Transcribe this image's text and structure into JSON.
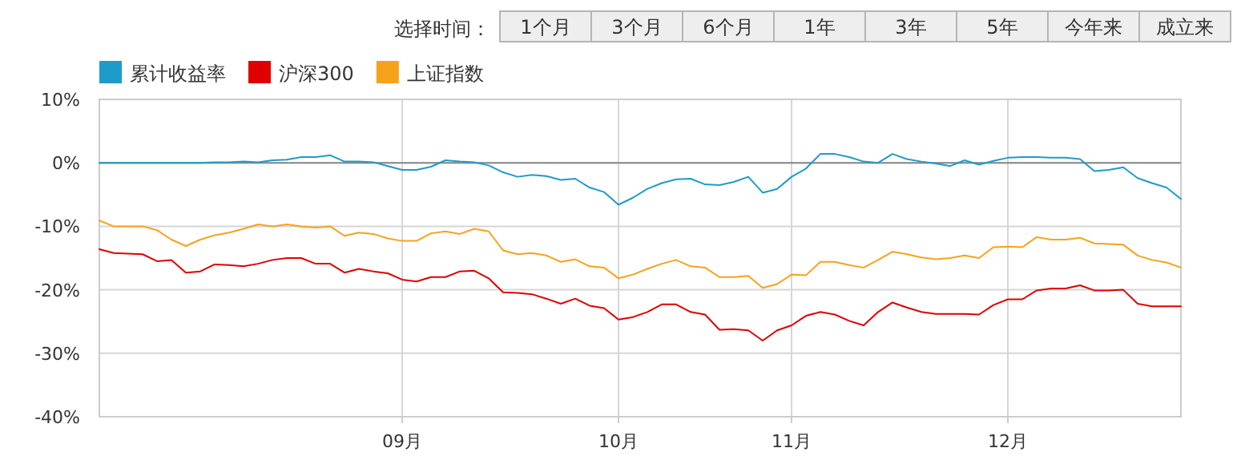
{
  "chart_data": {
    "type": "line",
    "annotations": [
      "选择时间：",
      "1个月",
      "3个月",
      "6个月",
      "1年",
      "3年",
      "5年",
      "今年来",
      "成立来"
    ],
    "categories": [
      null,
      null,
      null,
      null,
      null,
      null,
      null,
      null,
      null,
      null,
      null,
      null,
      null,
      null,
      null,
      null,
      null,
      null,
      null,
      null,
      null,
      "09月",
      null,
      null,
      null,
      null,
      null,
      null,
      null,
      null,
      null,
      null,
      null,
      null,
      null,
      null,
      "10月",
      null,
      null,
      null,
      null,
      null,
      null,
      null,
      null,
      null,
      null,
      null,
      "11月",
      null,
      null,
      null,
      null,
      null,
      null,
      null,
      null,
      null,
      null,
      null,
      null,
      null,
      null,
      "12月",
      null,
      null,
      null,
      null,
      null,
      null,
      null,
      null,
      null,
      null,
      null,
      null
    ],
    "series": [
      {
        "name": "累计收益率",
        "color": "#1e9bc9",
        "values": [
          0,
          0,
          0,
          0,
          0,
          0,
          0,
          0,
          0.1,
          0.1,
          0.2,
          0.1,
          0.4,
          0.5,
          0.9,
          0.9,
          1.2,
          0.2,
          0.2,
          0.1,
          -0.5,
          -1.1,
          -1.1,
          -0.6,
          0.4,
          0.2,
          0.1,
          -0.4,
          -1.5,
          -2.2,
          -1.9,
          -2.1,
          -2.7,
          -2.5,
          -3.9,
          -4.6,
          -6.6,
          -5.5,
          -4.1,
          -3.2,
          -2.6,
          -2.5,
          -3.4,
          -3.5,
          -3.0,
          -2.2,
          -4.7,
          -4.1,
          -2.2,
          -0.9,
          1.4,
          1.4,
          0.9,
          0.2,
          0,
          1.4,
          0.6,
          0.2,
          -0.1,
          -0.5,
          0.4,
          -0.3,
          0.3,
          0.8,
          0.9,
          0.9,
          0.8,
          0.8,
          0.6,
          -1.3,
          -1.1,
          -0.7,
          -2.4,
          -3.2,
          -3.9,
          -5.7
        ]
      },
      {
        "name": "沪深300",
        "color": "#e00000",
        "values": [
          -13.6,
          -14.2,
          -14.3,
          -14.4,
          -15.5,
          -15.3,
          -17.3,
          -17.1,
          -16.0,
          -16.1,
          -16.3,
          -15.9,
          -15.3,
          -15.0,
          -15.0,
          -15.9,
          -15.9,
          -17.3,
          -16.7,
          -17.1,
          -17.4,
          -18.4,
          -18.7,
          -18.0,
          -18.0,
          -17.1,
          -17.0,
          -18.2,
          -20.4,
          -20.5,
          -20.7,
          -21.4,
          -22.2,
          -21.4,
          -22.5,
          -22.9,
          -24.7,
          -24.3,
          -23.5,
          -22.3,
          -22.3,
          -23.5,
          -23.9,
          -26.3,
          -26.2,
          -26.4,
          -28.0,
          -26.4,
          -25.6,
          -24.1,
          -23.5,
          -23.9,
          -24.9,
          -25.6,
          -23.5,
          -22.0,
          -22.8,
          -23.5,
          -23.8,
          -23.8,
          -23.8,
          -23.9,
          -22.4,
          -21.5,
          -21.5,
          -20.1,
          -19.8,
          -19.8,
          -19.3,
          -20.1,
          -20.1,
          -20.0,
          -22.2,
          -22.6,
          -22.6,
          -22.6
        ]
      },
      {
        "name": "上证指数",
        "color": "#f7a21b",
        "values": [
          -9.1,
          -10.0,
          -10.0,
          -10.0,
          -10.6,
          -12.1,
          -13.1,
          -12.1,
          -11.4,
          -11.0,
          -10.4,
          -9.7,
          -10.0,
          -9.7,
          -10.0,
          -10.2,
          -10.0,
          -11.5,
          -11.0,
          -11.2,
          -11.9,
          -12.3,
          -12.3,
          -11.1,
          -10.8,
          -11.2,
          -10.4,
          -10.8,
          -13.8,
          -14.4,
          -14.2,
          -14.6,
          -15.6,
          -15.2,
          -16.3,
          -16.5,
          -18.2,
          -17.6,
          -16.7,
          -15.9,
          -15.3,
          -16.3,
          -16.5,
          -18.0,
          -18.0,
          -17.8,
          -19.7,
          -19.1,
          -17.6,
          -17.7,
          -15.6,
          -15.6,
          -16.1,
          -16.5,
          -15.3,
          -14.0,
          -14.4,
          -14.9,
          -15.2,
          -15.0,
          -14.6,
          -15.0,
          -13.3,
          -13.2,
          -13.3,
          -11.7,
          -12.1,
          -12.1,
          -11.8,
          -12.7,
          -12.8,
          -12.9,
          -14.6,
          -15.3,
          -15.7,
          -16.5
        ]
      }
    ],
    "ylim": [
      -40,
      10
    ],
    "yticks": [
      {
        "value": 10,
        "label": "10%"
      },
      {
        "value": 0,
        "label": "0%"
      },
      {
        "value": -10,
        "label": "-10%"
      },
      {
        "value": -20,
        "label": "-20%"
      },
      {
        "value": -30,
        "label": "-30%"
      },
      {
        "value": -40,
        "label": "-40%"
      }
    ],
    "ref_lines": [
      {
        "axis": "y",
        "value": 0,
        "color": "#888888"
      }
    ],
    "grid": true,
    "legend": "top left",
    "marker": "none",
    "line_style": "solid"
  }
}
